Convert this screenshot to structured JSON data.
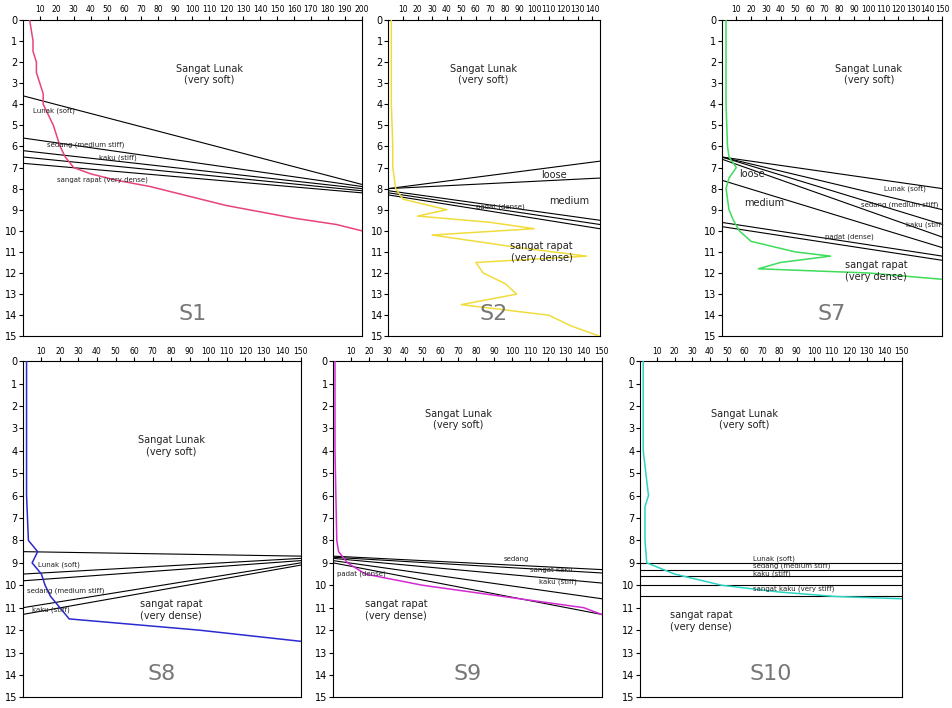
{
  "chart_data": [
    {
      "type": "line",
      "title": "S1",
      "xlim": [
        0,
        200
      ],
      "xticks": [
        10,
        20,
        30,
        40,
        50,
        60,
        70,
        80,
        90,
        100,
        110,
        120,
        130,
        140,
        150,
        160,
        170,
        180,
        190,
        200
      ],
      "ylim": [
        15,
        0
      ],
      "yticks": [
        0,
        1,
        2,
        3,
        4,
        5,
        6,
        7,
        8,
        9,
        10,
        11,
        12,
        13,
        14,
        15
      ],
      "series": [
        {
          "color": "#e8437a",
          "x": [
            4,
            5,
            6,
            6,
            8,
            8,
            10,
            12,
            12,
            15,
            18,
            20,
            22,
            25,
            30,
            40,
            55,
            75,
            90,
            105,
            120,
            140,
            160,
            185,
            200
          ],
          "values": [
            0,
            0.5,
            1,
            1.5,
            2,
            2.5,
            3,
            3.5,
            4,
            4.5,
            5,
            5.5,
            6,
            6.5,
            7,
            7.3,
            7.6,
            7.9,
            8.2,
            8.5,
            8.8,
            9.1,
            9.4,
            9.7,
            10
          ]
        },
        {
          "color": "#000000",
          "x": [
            0,
            200
          ],
          "values": [
            3.6,
            7.8
          ]
        },
        {
          "color": "#000000",
          "x": [
            0,
            200
          ],
          "values": [
            5.6,
            7.9
          ]
        },
        {
          "color": "#000000",
          "x": [
            0,
            200
          ],
          "values": [
            6.2,
            8.0
          ]
        },
        {
          "color": "#000000",
          "x": [
            0,
            200
          ],
          "values": [
            6.5,
            8.1
          ]
        },
        {
          "color": "#000000",
          "x": [
            0,
            200
          ],
          "values": [
            6.8,
            8.2
          ]
        }
      ],
      "annotations": [
        {
          "text": "Sangat Lunak\n(very soft)",
          "x": 110,
          "y": 2.6
        },
        {
          "text": "Lunak (soft)",
          "x": 6,
          "y": 4.3
        },
        {
          "text": "sedang (medium stiff)",
          "x": 14,
          "y": 5.9
        },
        {
          "text": "kaku (stiff)",
          "x": 45,
          "y": 6.55
        },
        {
          "text": "sangat rapat (very dense)",
          "x": 20,
          "y": 7.6
        }
      ]
    },
    {
      "type": "line",
      "title": "S2",
      "xlim": [
        0,
        145
      ],
      "xticks": [
        10,
        20,
        30,
        40,
        50,
        60,
        70,
        80,
        90,
        100,
        110,
        120,
        130,
        140
      ],
      "ylim": [
        15,
        0
      ],
      "yticks": [
        0,
        1,
        2,
        3,
        4,
        5,
        6,
        7,
        8,
        9,
        10,
        11,
        12,
        13,
        14,
        15
      ],
      "series": [
        {
          "color": "#f0dc3c",
          "x": [
            2,
            2,
            2,
            3,
            3,
            5,
            10,
            40,
            20,
            70,
            100,
            30,
            60,
            90,
            136,
            60,
            65,
            80,
            88,
            50,
            110,
            125,
            145
          ],
          "values": [
            0,
            2,
            4,
            6,
            7,
            8,
            8.5,
            9,
            9.3,
            9.6,
            9.9,
            10.2,
            10.5,
            10.8,
            11.2,
            11.5,
            12,
            12.5,
            13,
            13.5,
            14,
            14.5,
            15
          ]
        },
        {
          "color": "#000000",
          "x": [
            0,
            145
          ],
          "values": [
            8.0,
            6.7
          ]
        },
        {
          "color": "#000000",
          "x": [
            0,
            145
          ],
          "values": [
            8.0,
            7.5
          ]
        },
        {
          "color": "#000000",
          "x": [
            0,
            145
          ],
          "values": [
            8.1,
            9.5
          ]
        },
        {
          "color": "#000000",
          "x": [
            0,
            145
          ],
          "values": [
            8.2,
            9.7
          ]
        },
        {
          "color": "#000000",
          "x": [
            0,
            145
          ],
          "values": [
            8.3,
            9.9
          ]
        }
      ],
      "annotations": [
        {
          "text": "Sangat Lunak\n(very soft)",
          "x": 65,
          "y": 2.6
        },
        {
          "text": "loose",
          "x": 105,
          "y": 7.35
        },
        {
          "text": "medium",
          "x": 110,
          "y": 8.6
        },
        {
          "text": "padat (dense)",
          "x": 60,
          "y": 8.85
        },
        {
          "text": "sangat rapat\n(very dense)",
          "x": 105,
          "y": 11
        }
      ]
    },
    {
      "type": "line",
      "title": "S7",
      "xlim": [
        0,
        150
      ],
      "xticks": [
        10,
        20,
        30,
        40,
        50,
        60,
        70,
        80,
        90,
        100,
        110,
        120,
        130,
        140,
        150
      ],
      "ylim": [
        15,
        0
      ],
      "yticks": [
        0,
        1,
        2,
        3,
        4,
        5,
        6,
        7,
        8,
        9,
        10,
        11,
        12,
        13,
        14,
        15
      ],
      "series": [
        {
          "color": "#3ddc5a",
          "x": [
            3,
            3,
            3,
            4,
            5,
            10,
            5,
            3,
            5,
            8,
            12,
            20,
            50,
            74,
            40,
            25,
            100,
            150
          ],
          "values": [
            0,
            2,
            4,
            6,
            6.5,
            7,
            7.5,
            8,
            9,
            9.5,
            10,
            10.5,
            11,
            11.2,
            11.5,
            11.8,
            12,
            12.3
          ]
        },
        {
          "color": "#000000",
          "x": [
            0,
            150
          ],
          "values": [
            6.5,
            8.0
          ]
        },
        {
          "color": "#000000",
          "x": [
            0,
            150
          ],
          "values": [
            6.5,
            9.0
          ]
        },
        {
          "color": "#000000",
          "x": [
            0,
            150
          ],
          "values": [
            6.5,
            9.7
          ]
        },
        {
          "color": "#000000",
          "x": [
            0,
            150
          ],
          "values": [
            6.6,
            10.3
          ]
        },
        {
          "color": "#000000",
          "x": [
            0,
            150
          ],
          "values": [
            7.6,
            10.8
          ]
        },
        {
          "color": "#000000",
          "x": [
            0,
            150
          ],
          "values": [
            9.6,
            11.2
          ]
        },
        {
          "color": "#000000",
          "x": [
            0,
            150
          ],
          "values": [
            9.8,
            11.4
          ]
        }
      ],
      "annotations": [
        {
          "text": "Sangat Lunak\n(very soft)",
          "x": 100,
          "y": 2.6
        },
        {
          "text": "loose",
          "x": 12,
          "y": 7.3
        },
        {
          "text": "medium",
          "x": 15,
          "y": 8.7
        },
        {
          "text": "padat (dense)",
          "x": 70,
          "y": 10.3
        },
        {
          "text": "Lunak (soft)",
          "x": 110,
          "y": 8.0
        },
        {
          "text": "sedang (medium stiff)",
          "x": 95,
          "y": 8.75
        },
        {
          "text": "kaku (stiff)",
          "x": 125,
          "y": 9.7
        },
        {
          "text": "sangat rapat\n(very dense)",
          "x": 105,
          "y": 11.9
        }
      ]
    },
    {
      "type": "line",
      "title": "S8",
      "xlim": [
        0,
        150
      ],
      "xticks": [
        10,
        20,
        30,
        40,
        50,
        60,
        70,
        80,
        90,
        100,
        110,
        120,
        130,
        140,
        150
      ],
      "ylim": [
        15,
        0
      ],
      "yticks": [
        0,
        1,
        2,
        3,
        4,
        5,
        6,
        7,
        8,
        9,
        10,
        11,
        12,
        13,
        14,
        15
      ],
      "series": [
        {
          "color": "#2a2ad0",
          "x": [
            2,
            2,
            2,
            2,
            3,
            8,
            5,
            10,
            12,
            15,
            20,
            25,
            95,
            150
          ],
          "values": [
            0,
            2,
            4,
            6,
            8,
            8.5,
            9,
            9.5,
            10,
            10.5,
            11,
            11.5,
            12,
            12.5
          ]
        },
        {
          "color": "#000000",
          "x": [
            0,
            150
          ],
          "values": [
            8.5,
            8.7
          ]
        },
        {
          "color": "#000000",
          "x": [
            0,
            150
          ],
          "values": [
            9.5,
            8.8
          ]
        },
        {
          "color": "#000000",
          "x": [
            0,
            150
          ],
          "values": [
            9.8,
            8.9
          ]
        },
        {
          "color": "#000000",
          "x": [
            0,
            150
          ],
          "values": [
            11.0,
            9.0
          ]
        },
        {
          "color": "#000000",
          "x": [
            0,
            150
          ],
          "values": [
            11.3,
            9.1
          ]
        }
      ],
      "annotations": [
        {
          "text": "Sangat Lunak\n(very soft)",
          "x": 80,
          "y": 3.8
        },
        {
          "text": "Lunak (soft)",
          "x": 8,
          "y": 9.1
        },
        {
          "text": "sedang (medium stiff)",
          "x": 2,
          "y": 10.25
        },
        {
          "text": "kaku (stiff)",
          "x": 5,
          "y": 11.1
        },
        {
          "text": "sangat rapat\n(very dense)",
          "x": 80,
          "y": 11.1
        }
      ]
    },
    {
      "type": "line",
      "title": "S9",
      "xlim": [
        0,
        150
      ],
      "xticks": [
        10,
        20,
        30,
        40,
        50,
        60,
        70,
        80,
        90,
        100,
        110,
        120,
        130,
        140,
        150
      ],
      "ylim": [
        15,
        0
      ],
      "yticks": [
        0,
        1,
        2,
        3,
        4,
        5,
        6,
        7,
        8,
        9,
        10,
        11,
        12,
        13,
        14,
        15
      ],
      "series": [
        {
          "color": "#d42ad4",
          "x": [
            1,
            1,
            2,
            3,
            8,
            18,
            50,
            95,
            140,
            150
          ],
          "values": [
            0,
            4,
            8,
            8.5,
            9,
            9.5,
            10,
            10.5,
            11,
            11.3
          ]
        },
        {
          "color": "#000000",
          "x": [
            0,
            150
          ],
          "values": [
            8.7,
            9.3
          ]
        },
        {
          "color": "#000000",
          "x": [
            0,
            150
          ],
          "values": [
            8.75,
            9.45
          ]
        },
        {
          "color": "#000000",
          "x": [
            0,
            150
          ],
          "values": [
            8.8,
            9.9
          ]
        },
        {
          "color": "#000000",
          "x": [
            0,
            150
          ],
          "values": [
            8.9,
            10.6
          ]
        },
        {
          "color": "#000000",
          "x": [
            0,
            150
          ],
          "values": [
            9.0,
            11.3
          ]
        }
      ],
      "annotations": [
        {
          "text": "Sangat Lunak\n(very soft)",
          "x": 70,
          "y": 2.6
        },
        {
          "text": "sedang",
          "x": 95,
          "y": 8.85
        },
        {
          "text": "sangat kaku",
          "x": 110,
          "y": 9.3
        },
        {
          "text": "kaku (stiff)",
          "x": 115,
          "y": 9.85
        },
        {
          "text": "padat (dense)",
          "x": 2,
          "y": 9.5
        },
        {
          "text": "sangat rapat\n(very dense)",
          "x": 35,
          "y": 11.1
        }
      ]
    },
    {
      "type": "line",
      "title": "S10",
      "xlim": [
        0,
        150
      ],
      "xticks": [
        10,
        20,
        30,
        40,
        50,
        60,
        70,
        80,
        90,
        100,
        110,
        120,
        130,
        140,
        150
      ],
      "ylim": [
        15,
        0
      ],
      "yticks": [
        0,
        1,
        2,
        3,
        4,
        5,
        6,
        7,
        8,
        9,
        10,
        11,
        12,
        13,
        14,
        15
      ],
      "series": [
        {
          "color": "#2ad4c4",
          "x": [
            2,
            2,
            2,
            5,
            3,
            3,
            4,
            20,
            47,
            80,
            112,
            150
          ],
          "values": [
            0,
            2,
            4,
            6,
            6.5,
            8,
            9,
            9.5,
            10,
            10.3,
            10.5,
            10.6
          ]
        },
        {
          "color": "#000000",
          "x": [
            0,
            150
          ],
          "values": [
            9.0,
            9.0
          ]
        },
        {
          "color": "#000000",
          "x": [
            0,
            150
          ],
          "values": [
            9.3,
            9.3
          ]
        },
        {
          "color": "#000000",
          "x": [
            0,
            150
          ],
          "values": [
            9.6,
            9.6
          ]
        },
        {
          "color": "#000000",
          "x": [
            0,
            150
          ],
          "values": [
            10.0,
            10.0
          ]
        },
        {
          "color": "#000000",
          "x": [
            0,
            150
          ],
          "values": [
            10.5,
            10.5
          ]
        }
      ],
      "annotations": [
        {
          "text": "Sangat Lunak\n(very soft)",
          "x": 60,
          "y": 2.6
        },
        {
          "text": "Lunak (soft)",
          "x": 65,
          "y": 8.8
        },
        {
          "text": "sedang (medium stiff)",
          "x": 65,
          "y": 9.15
        },
        {
          "text": "kaku (stiff)",
          "x": 65,
          "y": 9.48
        },
        {
          "text": "sangat kaku (very stiff)",
          "x": 65,
          "y": 10.15
        },
        {
          "text": "sangat rapat\n(very dense)",
          "x": 35,
          "y": 11.6
        }
      ]
    }
  ]
}
